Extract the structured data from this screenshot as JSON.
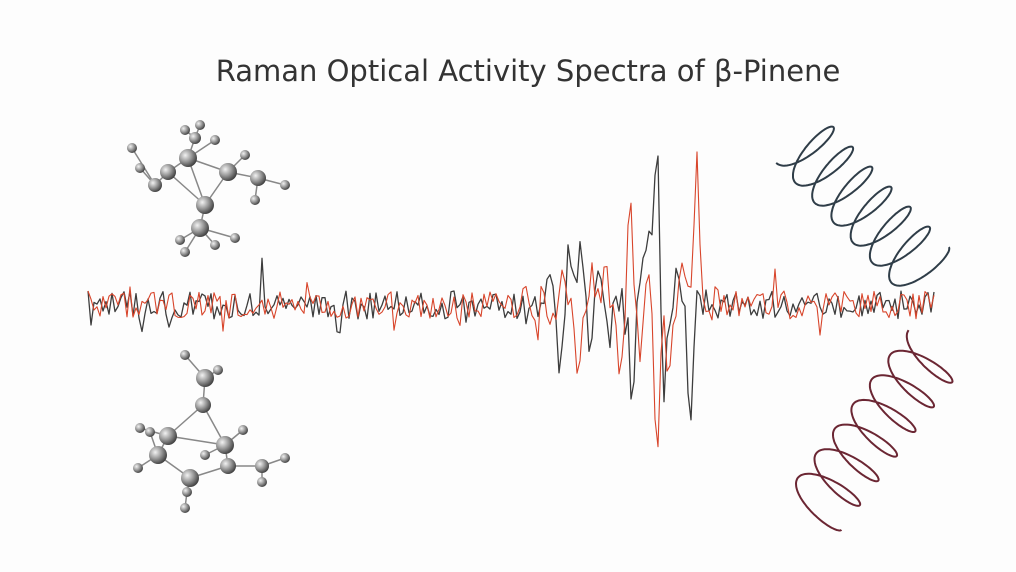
{
  "header": {
    "title": "Raman Optical Activity Spectra of β-Pinene"
  }
}
